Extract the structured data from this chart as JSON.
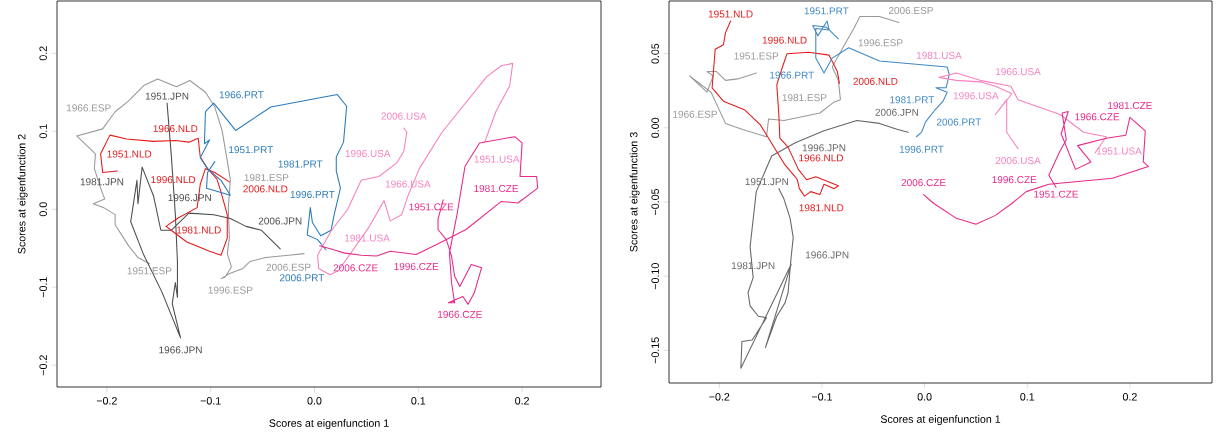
{
  "chart_data": [
    {
      "type": "line",
      "xlabel": "Scores at eigenfunction 1",
      "ylabel": "Scores at eigenfunction 2",
      "xlim": [
        -0.248,
        0.276
      ],
      "ylim": [
        -0.228,
        0.267
      ],
      "xticks": [
        {
          "value": -0.2,
          "label": "−0.2"
        },
        {
          "value": -0.1,
          "label": "−0.1"
        },
        {
          "value": 0,
          "label": "0.0"
        },
        {
          "value": 0.1,
          "label": "0.1"
        },
        {
          "value": 0.2,
          "label": "0.2"
        }
      ],
      "yticks": [
        {
          "value": -0.2,
          "label": "−0.2"
        },
        {
          "value": -0.1,
          "label": "−0.1"
        },
        {
          "value": 0,
          "label": "0.0"
        },
        {
          "value": 0.1,
          "label": "0.1"
        },
        {
          "value": 0.2,
          "label": "0.2"
        }
      ],
      "series": [
        {
          "color": "#999999",
          "x": [
            -0.159,
            -0.17,
            -0.179,
            -0.192,
            -0.192,
            -0.203,
            -0.213,
            -0.202,
            -0.206,
            -0.212,
            -0.211,
            -0.229,
            -0.204,
            -0.192,
            -0.179,
            -0.164,
            -0.151,
            -0.133,
            -0.12,
            -0.105,
            -0.096,
            -0.089,
            -0.084,
            -0.081,
            -0.083,
            -0.082,
            -0.084,
            -0.08,
            -0.086,
            -0.09,
            -0.081,
            -0.069,
            -0.062,
            -0.047,
            -0.025,
            -0.01
          ],
          "values": [
            -0.07,
            -0.062,
            -0.047,
            -0.02,
            -0.007,
            0.002,
            0.007,
            0.013,
            0.027,
            0.052,
            0.071,
            0.094,
            0.103,
            0.125,
            0.139,
            0.159,
            0.167,
            0.157,
            0.165,
            0.15,
            0.131,
            0.101,
            0.062,
            0.038,
            0.002,
            -0.037,
            -0.057,
            -0.074,
            -0.087,
            -0.089,
            -0.082,
            -0.076,
            -0.067,
            -0.062,
            -0.059,
            -0.057
          ]
        },
        {
          "color": "#4d4d4d",
          "x": [
            -0.142,
            -0.138,
            -0.134,
            -0.132,
            -0.132,
            -0.134,
            -0.137,
            -0.129,
            -0.147,
            -0.165,
            -0.177,
            -0.171,
            -0.17,
            -0.166,
            -0.155,
            -0.148,
            -0.138,
            -0.121,
            -0.097,
            -0.081,
            -0.066,
            -0.051,
            -0.042,
            -0.033
          ],
          "values": [
            0.136,
            0.071,
            -0.007,
            -0.067,
            -0.113,
            -0.094,
            -0.121,
            -0.165,
            -0.106,
            -0.057,
            -0.016,
            0.037,
            0.007,
            0.054,
            0.017,
            -0.027,
            -0.027,
            -0.005,
            -0.007,
            -0.012,
            -0.022,
            -0.027,
            -0.039,
            -0.051
          ]
        },
        {
          "color": "#e41a1c",
          "x": [
            -0.19,
            -0.204,
            -0.206,
            -0.197,
            -0.181,
            -0.155,
            -0.134,
            -0.121,
            -0.112,
            -0.11,
            -0.103,
            -0.094,
            -0.09,
            -0.084,
            -0.084,
            -0.09,
            -0.101,
            -0.114,
            -0.123,
            -0.138,
            -0.143,
            -0.131,
            -0.113,
            -0.11,
            -0.105,
            -0.096,
            -0.082
          ],
          "values": [
            0.049,
            0.047,
            0.071,
            0.095,
            0.09,
            0.087,
            0.088,
            0.086,
            0.091,
            0.067,
            0.052,
            0.039,
            0.022,
            -0.007,
            -0.037,
            -0.059,
            -0.054,
            -0.047,
            -0.042,
            -0.027,
            -0.022,
            -0.011,
            0.002,
            0.032,
            0.052,
            0.047,
            0.035
          ]
        },
        {
          "color": "#2b7bba",
          "x": [
            -0.096,
            -0.103,
            -0.104,
            -0.081,
            -0.09,
            -0.103,
            -0.11,
            -0.101,
            -0.106,
            -0.105,
            -0.097,
            -0.076,
            -0.042,
            0.022,
            0.031,
            0.028,
            0.021,
            0.021,
            0.025,
            0.019,
            0.016,
            0.006,
            -0.002,
            -0.004,
            -0.007,
            0.003,
            0.011
          ],
          "values": [
            0.061,
            0.047,
            0.027,
            0.018,
            0.037,
            0.052,
            0.066,
            0.089,
            0.084,
            0.125,
            0.136,
            0.101,
            0.131,
            0.147,
            0.132,
            0.086,
            0.067,
            0.049,
            0.027,
            -0.007,
            -0.027,
            -0.034,
            -0.017,
            0.002,
            -0.033,
            -0.039,
            -0.052
          ]
        },
        {
          "color": "#f781bf",
          "x": [
            0.164,
            0.175,
            0.188,
            0.191,
            0.18,
            0.166,
            0.123,
            0.101,
            0.09,
            0.084,
            0.073,
            0.067,
            0.053,
            0.023,
            0.015,
            0.004,
            0.003,
            0.016,
            0.032,
            0.045,
            0.062,
            0.079,
            0.086,
            0.089,
            0.086
          ],
          "values": [
            0.086,
            0.126,
            0.158,
            0.187,
            0.184,
            0.17,
            0.099,
            0.052,
            0.017,
            -0.007,
            -0.015,
            0.011,
            -0.022,
            -0.079,
            -0.084,
            -0.076,
            -0.059,
            -0.028,
            0.0,
            0.037,
            0.042,
            0.059,
            0.074,
            0.099,
            0.104
          ]
        },
        {
          "color": "#e7298a",
          "x": [
            0.124,
            0.119,
            0.119,
            0.127,
            0.132,
            0.135,
            0.14,
            0.151,
            0.161,
            0.154,
            0.148,
            0.143,
            0.129,
            0.135,
            0.132,
            0.13,
            0.137,
            0.145,
            0.159,
            0.193,
            0.2,
            0.198,
            0.214,
            0.215,
            0.196,
            0.18,
            0.146,
            0.121,
            0.098,
            0.073,
            0.06,
            0.045,
            0.028,
            0.021,
            0.005
          ],
          "values": [
            0.012,
            -0.013,
            -0.026,
            -0.039,
            -0.06,
            -0.086,
            -0.099,
            -0.071,
            -0.075,
            -0.107,
            -0.122,
            -0.112,
            -0.12,
            -0.12,
            -0.094,
            -0.056,
            -0.009,
            0.055,
            0.085,
            0.093,
            0.085,
            0.042,
            0.042,
            0.027,
            0.008,
            0.01,
            -0.026,
            -0.043,
            -0.058,
            -0.054,
            -0.06,
            -0.059,
            -0.056,
            -0.053,
            -0.047
          ]
        }
      ],
      "annotations": [
        {
          "text": "1951.ESP",
          "x": -0.159,
          "y": -0.07
        },
        {
          "text": "1966.ESP",
          "x": -0.229,
          "y": 0.094
        },
        {
          "text": "1981.ESP",
          "x": -0.081,
          "y": 0.038
        },
        {
          "text": "1996.ESP",
          "x": -0.081,
          "y": -0.082
        },
        {
          "text": "2006.ESP",
          "x": -0.025,
          "y": -0.059
        },
        {
          "text": "1951.JPN",
          "x": -0.142,
          "y": 0.136
        },
        {
          "text": "1966.JPN",
          "x": -0.129,
          "y": -0.165
        },
        {
          "text": "1981.JPN",
          "x": -0.17,
          "y": 0.007
        },
        {
          "text": "1996.JPN",
          "x": -0.097,
          "y": -0.007
        },
        {
          "text": "2006.JPN",
          "x": -0.033,
          "y": -0.051
        },
        {
          "text": "1951.NLD",
          "x": -0.19,
          "y": 0.049
        },
        {
          "text": "1966.NLD",
          "x": -0.134,
          "y": 0.088
        },
        {
          "text": "1981.NLD",
          "x": -0.123,
          "y": -0.042
        },
        {
          "text": "1996.NLD",
          "x": -0.113,
          "y": 0.002
        },
        {
          "text": "2006.NLD",
          "x": -0.082,
          "y": 0.035
        },
        {
          "text": "1951.PRT",
          "x": -0.096,
          "y": 0.061
        },
        {
          "text": "1966.PRT",
          "x": -0.105,
          "y": 0.125
        },
        {
          "text": "1981.PRT",
          "x": 0.021,
          "y": 0.049
        },
        {
          "text": "1996.PRT",
          "x": -0.002,
          "y": -0.017
        },
        {
          "text": "2006.PRT",
          "x": 0.011,
          "y": -0.052
        },
        {
          "text": "1951.USA",
          "x": 0.164,
          "y": 0.086
        },
        {
          "text": "1966.USA",
          "x": 0.09,
          "y": 0.017
        },
        {
          "text": "1981.USA",
          "x": 0.016,
          "y": -0.028
        },
        {
          "text": "1996.USA",
          "x": 0.086,
          "y": 0.074
        },
        {
          "text": "2006.USA",
          "x": 0.086,
          "y": 0.104
        },
        {
          "text": "1951.CZE",
          "x": 0.124,
          "y": 0.012
        },
        {
          "text": "1966.CZE",
          "x": 0.14,
          "y": -0.099
        },
        {
          "text": "1981.CZE",
          "x": 0.198,
          "y": 0.042
        },
        {
          "text": "1996.CZE",
          "x": 0.098,
          "y": -0.058
        },
        {
          "text": "2006.CZE",
          "x": 0.005,
          "y": -0.047
        }
      ]
    },
    {
      "type": "line",
      "xlabel": "Scores at eigenfunction 1",
      "ylabel": "Scores at eigenfunction 3",
      "xlim": [
        -0.249,
        0.28
      ],
      "ylim": [
        -0.172,
        0.0855
      ],
      "xticks": [
        {
          "value": -0.2,
          "label": "−0.2"
        },
        {
          "value": -0.1,
          "label": "−0.1"
        },
        {
          "value": 0,
          "label": "0.0"
        },
        {
          "value": 0.1,
          "label": "0.1"
        },
        {
          "value": 0.2,
          "label": "0.2"
        }
      ],
      "yticks": [
        {
          "value": -0.15,
          "label": "−0.15"
        },
        {
          "value": -0.1,
          "label": "−0.10"
        },
        {
          "value": -0.05,
          "label": "−0.05"
        },
        {
          "value": 0,
          "label": "0.00"
        },
        {
          "value": 0.05,
          "label": "0.05"
        }
      ],
      "series": [
        {
          "color": "#999999",
          "x": [
            -0.164,
            -0.182,
            -0.194,
            -0.203,
            -0.212,
            -0.206,
            -0.212,
            -0.229,
            -0.208,
            -0.194,
            -0.178,
            -0.154,
            -0.152,
            -0.137,
            -0.102,
            -0.089,
            -0.082,
            -0.084,
            -0.09,
            -0.078,
            -0.069,
            -0.063,
            -0.044,
            -0.025
          ],
          "values": [
            0.037,
            0.033,
            0.032,
            0.038,
            0.038,
            0.035,
            0.024,
            0.035,
            0.024,
            0.003,
            -0.001,
            -0.006,
            0.006,
            0.005,
            0.01,
            0.017,
            0.019,
            0.032,
            0.041,
            0.056,
            0.067,
            0.075,
            0.075,
            0.071
          ]
        },
        {
          "color": "#666666",
          "x": [
            -0.142,
            -0.137,
            -0.131,
            -0.128,
            -0.13,
            -0.133,
            -0.136,
            -0.144,
            -0.155,
            -0.13,
            -0.179,
            -0.178,
            -0.168,
            -0.154,
            -0.162,
            -0.17,
            -0.172,
            -0.167,
            -0.17,
            -0.164,
            -0.149,
            -0.126,
            -0.098,
            -0.066,
            -0.044,
            -0.027,
            -0.016
          ],
          "values": [
            -0.041,
            -0.048,
            -0.061,
            -0.074,
            -0.087,
            -0.111,
            -0.118,
            -0.127,
            -0.148,
            -0.092,
            -0.162,
            -0.144,
            -0.143,
            -0.128,
            -0.127,
            -0.12,
            -0.111,
            -0.101,
            -0.08,
            -0.043,
            -0.019,
            -0.01,
            -0.002,
            0.005,
            0.003,
            -0.001,
            -0.003
          ]
        },
        {
          "color": "#e41a1c",
          "x": [
            -0.189,
            -0.194,
            -0.196,
            -0.204,
            -0.207,
            -0.196,
            -0.175,
            -0.16,
            -0.145,
            -0.136,
            -0.126,
            -0.124,
            -0.122,
            -0.117,
            -0.111,
            -0.102,
            -0.098,
            -0.088,
            -0.084,
            -0.106,
            -0.115,
            -0.123,
            -0.133,
            -0.141,
            -0.142,
            -0.144,
            -0.138,
            -0.134,
            -0.113,
            -0.093,
            -0.085,
            -0.083
          ],
          "values": [
            0.072,
            0.064,
            0.056,
            0.053,
            0.027,
            0.018,
            0.012,
            0.002,
            -0.015,
            -0.025,
            -0.033,
            -0.035,
            -0.041,
            -0.046,
            -0.043,
            -0.045,
            -0.038,
            -0.041,
            -0.039,
            -0.033,
            -0.035,
            -0.028,
            -0.013,
            -0.007,
            0.009,
            0.029,
            0.042,
            0.05,
            0.051,
            0.049,
            0.038,
            0.03
          ]
        },
        {
          "color": "#3f88c5",
          "x": [
            -0.084,
            -0.096,
            -0.109,
            -0.104,
            -0.095,
            -0.093,
            -0.106,
            -0.106,
            -0.098,
            -0.09,
            -0.074,
            -0.044,
            0.022,
            0.024,
            0.021,
            0.011,
            0.022,
            0.018,
            0.01,
            0.001,
            -0.003,
            -0.008
          ],
          "values": [
            0.06,
            0.068,
            0.069,
            0.062,
            0.072,
            0.066,
            0.067,
            0.047,
            0.037,
            0.047,
            0.054,
            0.045,
            0.041,
            0.036,
            0.027,
            0.027,
            0.024,
            0.018,
            0.012,
            0.004,
            -0.003,
            -0.006
          ]
        },
        {
          "color": "#f781bf",
          "x": [
            0.166,
            0.177,
            0.155,
            0.132,
            0.091,
            0.084,
            0.054,
            0.031,
            0.014,
            0.031,
            0.054,
            0.069,
            0.085,
            0.069,
            0.08,
            0.08,
            0.091
          ],
          "values": [
            -0.017,
            -0.006,
            -0.003,
            0.009,
            0.019,
            0.028,
            0.032,
            0.037,
            0.034,
            0.032,
            0.031,
            0.028,
            0.023,
            0.009,
            0.019,
            -0.003,
            -0.014
          ]
        },
        {
          "color": "#e7298a",
          "x": [
            0.128,
            0.121,
            0.131,
            0.138,
            0.134,
            0.14,
            0.133,
            0.147,
            0.162,
            0.149,
            0.177,
            0.196,
            0.2,
            0.215,
            0.213,
            0.218,
            0.183,
            0.121,
            0.099,
            0.085,
            0.069,
            0.05,
            0.031,
            0.009,
            -0.001
          ],
          "values": [
            -0.04,
            -0.032,
            -0.017,
            -0.008,
            0.01,
            0.011,
            -0.004,
            -0.028,
            -0.023,
            -0.012,
            -0.007,
            -0.005,
            0.007,
            -0.002,
            -0.023,
            -0.026,
            -0.034,
            -0.038,
            -0.043,
            -0.051,
            -0.059,
            -0.065,
            -0.061,
            -0.051,
            -0.045
          ]
        }
      ],
      "annotations": [
        {
          "text": "1951.ESP",
          "x": -0.164,
          "y": 0.037
        },
        {
          "text": "1966.ESP",
          "x": -0.212,
          "y": 0.024
        },
        {
          "text": "1981.ESP",
          "x": -0.082,
          "y": 0.019
        },
        {
          "text": "1996.ESP",
          "x": -0.078,
          "y": 0.056
        },
        {
          "text": "2006.ESP",
          "x": -0.025,
          "y": 0.071
        },
        {
          "text": "1951.JPN",
          "x": -0.142,
          "y": -0.041
        },
        {
          "text": "1966.JPN",
          "x": -0.13,
          "y": -0.087
        },
        {
          "text": "1981.JPN",
          "x": -0.167,
          "y": -0.101
        },
        {
          "text": "1996.JPN",
          "x": -0.098,
          "y": -0.002
        },
        {
          "text": "2006.JPN",
          "x": -0.027,
          "y": -0.001
        },
        {
          "text": "1951.NLD",
          "x": -0.189,
          "y": 0.072
        },
        {
          "text": "1966.NLD",
          "x": -0.136,
          "y": -0.025
        },
        {
          "text": "1981.NLD",
          "x": -0.124,
          "y": -0.035
        },
        {
          "text": "1996.NLD",
          "x": -0.113,
          "y": 0.051
        },
        {
          "text": "2006.NLD",
          "x": -0.083,
          "y": 0.03
        },
        {
          "text": "1951.PRT",
          "x": -0.084,
          "y": 0.06
        },
        {
          "text": "1966.PRT",
          "x": -0.106,
          "y": 0.047
        },
        {
          "text": "1981.PRT",
          "x": 0.011,
          "y": 0.027
        },
        {
          "text": "1996.PRT",
          "x": -0.003,
          "y": -0.003
        },
        {
          "text": "2006.PRT",
          "x": 0.01,
          "y": 0.012
        },
        {
          "text": "1951.USA",
          "x": 0.166,
          "y": -0.017
        },
        {
          "text": "1966.USA",
          "x": 0.091,
          "y": 0.019
        },
        {
          "text": "1981.USA",
          "x": 0.014,
          "y": 0.034
        },
        {
          "text": "1996.USA",
          "x": 0.085,
          "y": 0.023
        },
        {
          "text": "2006.USA",
          "x": 0.091,
          "y": -0.014
        },
        {
          "text": "1951.CZE",
          "x": 0.128,
          "y": -0.04
        },
        {
          "text": "1966.CZE",
          "x": 0.133,
          "y": -0.004
        },
        {
          "text": "1981.CZE",
          "x": 0.2,
          "y": 0.007
        },
        {
          "text": "1996.CZE",
          "x": 0.099,
          "y": -0.043
        },
        {
          "text": "2006.CZE",
          "x": -0.001,
          "y": -0.045
        }
      ]
    }
  ]
}
